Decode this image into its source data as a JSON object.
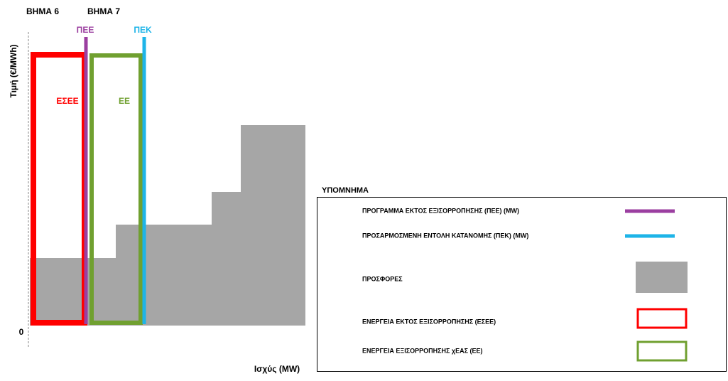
{
  "labels": {
    "step6": "ΒΗΜΑ 6",
    "step7": "ΒΗΜΑ 7",
    "pee": "ΠΕΕ",
    "pek": "ΠΕΚ",
    "esee": "ΕΣΕΕ",
    "ee": "ΕΕ",
    "y_axis": "Τιμή (€/MWh)",
    "x_axis": "Ισχύς (MW)",
    "zero": "0"
  },
  "legend": {
    "title": "ΥΠΟΜΝΗΜΑ",
    "items": [
      "ΠΡΟΓΡΑΜΜΑ ΕΚΤΟΣ ΕΞΙΣΟΡΡΟΠΗΣΗΣ (ΠΕΕ) (MW)",
      "ΠΡΟΣΑΡΜΟΣΜΕΝΗ ΕΝΤΟΛΗ ΚΑΤΑΝΟΜΗΣ (ΠΕΚ) (MW)",
      "ΠΡΟΣΦΟΡΕΣ",
      "ΕΝΕΡΓΕΙΑ ΕΚΤΟΣ ΕΞΙΣΟΡΡΟΠΗΣΗΣ (ΕΣΕΕ)",
      "ΕΝΕΡΓΕΙΑ ΕΞΙΣΟΡΡΟΠΗΣΗΣ χΕΑΣ (ΕΕ)"
    ]
  }
}
